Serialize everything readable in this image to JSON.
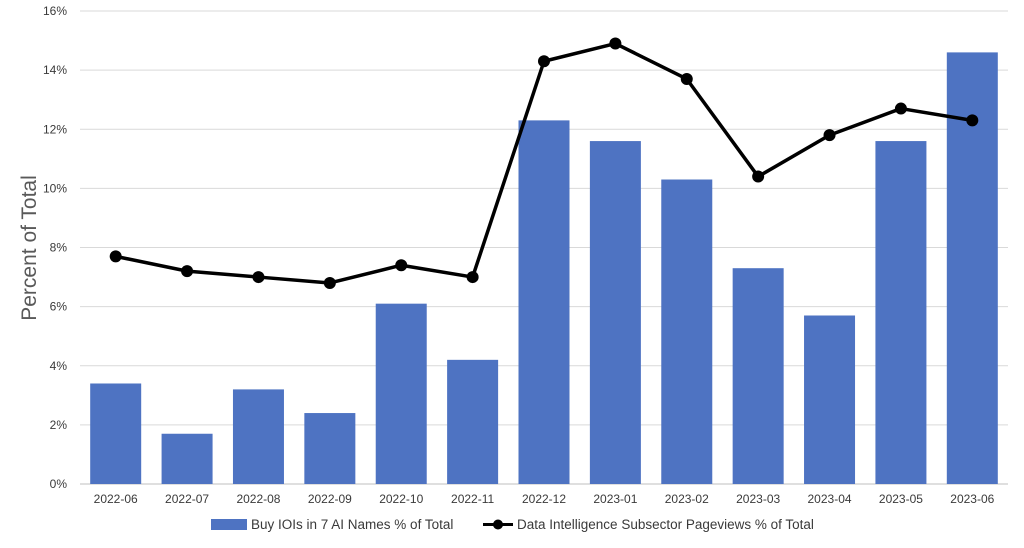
{
  "chart_data": {
    "type": "bar+line",
    "categories": [
      "2022-06",
      "2022-07",
      "2022-08",
      "2022-09",
      "2022-10",
      "2022-11",
      "2022-12",
      "2023-01",
      "2023-02",
      "2023-03",
      "2023-04",
      "2023-05",
      "2023-06"
    ],
    "series": [
      {
        "name": "Buy IOIs in 7 AI Names % of Total",
        "type": "bar",
        "color": "#4e73c2",
        "values": [
          3.4,
          1.7,
          3.2,
          2.4,
          6.1,
          4.2,
          12.3,
          11.6,
          10.3,
          7.3,
          5.7,
          11.6,
          14.6
        ]
      },
      {
        "name": "Data Intelligence Subsector Pageviews % of Total",
        "type": "line",
        "color": "#000000",
        "values": [
          7.7,
          7.2,
          7.0,
          6.8,
          7.4,
          7.0,
          14.3,
          14.9,
          13.7,
          10.4,
          11.8,
          12.7,
          12.3
        ]
      }
    ],
    "ylabel": "Percent of Total",
    "xlabel": "",
    "ylim": [
      0,
      16
    ],
    "yticks": [
      "0%",
      "2%",
      "4%",
      "6%",
      "8%",
      "10%",
      "12%",
      "14%",
      "16%"
    ],
    "grid": true,
    "legend": "bottom"
  }
}
